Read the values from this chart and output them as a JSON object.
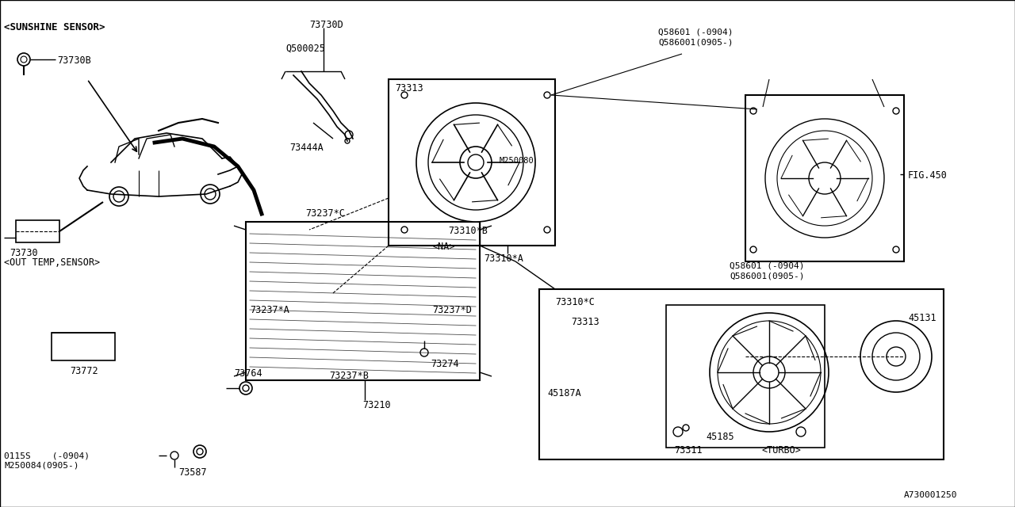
{
  "bg_color": "#ffffff",
  "line_color": "#000000",
  "title_bottom_right": "A730001250",
  "font_family": "monospace",
  "labels": {
    "sunshine_sensor": "<SUNSHINE SENSOR>",
    "out_temp_sensor": "<OUT TEMP,SENSOR>",
    "na_label": "<NA>",
    "turbo_label": "<TURBO>",
    "fig450": "FIG.450",
    "part_73730B": "73730B",
    "part_73730": "73730",
    "part_73730D": "73730D",
    "part_Q500025": "Q500025",
    "part_73444A": "73444A",
    "part_73313_1": "73313",
    "part_M250080": "M250080",
    "part_73310B": "73310*B",
    "part_73310A": "73310*A",
    "part_73310C": "73310*C",
    "part_73313_2": "73313",
    "part_73237C": "73237*C",
    "part_73237A": "73237*A",
    "part_73237D": "73237*D",
    "part_73237B": "73237*B",
    "part_73764": "73764",
    "part_73274": "73274",
    "part_73210": "73210",
    "part_73587": "73587",
    "part_73772": "73772",
    "part_0115S": "0115S    (-0904)",
    "part_M250084": "M250084(0905-)",
    "part_Q58601_1": "Q58601 (-0904)",
    "part_Q586001_1": "Q586001(0905-)",
    "part_Q58601_2": "Q58601 (-0904)",
    "part_Q586001_2": "Q586001(0905-)",
    "part_45131": "45131",
    "part_45187A": "45187A",
    "part_45185": "45185",
    "part_73311": "73311"
  }
}
